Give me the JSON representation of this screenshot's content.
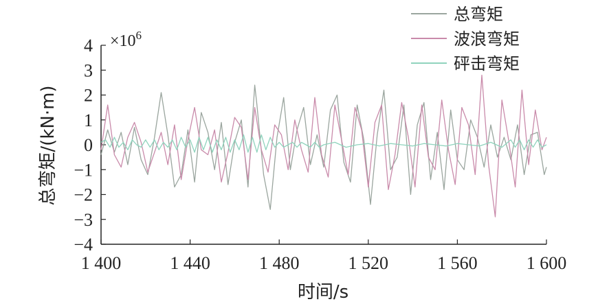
{
  "chart_data": {
    "type": "line",
    "xlabel": "时间/s",
    "ylabel": "总弯矩/(kN·m)",
    "y_multiplier": "×10",
    "y_multiplier_exp": "6",
    "xlim": [
      1400,
      1600
    ],
    "ylim": [
      -4,
      4
    ],
    "x_ticks": [
      1400,
      1440,
      1480,
      1520,
      1560,
      1600
    ],
    "x_tick_labels": [
      "1 400",
      "1 440",
      "1 480",
      "1 520",
      "1 560",
      "1 600"
    ],
    "y_ticks": [
      -4,
      -3,
      -2,
      -1,
      0,
      1,
      2,
      3,
      4
    ],
    "y_tick_labels": [
      "−4",
      "−3",
      "−2",
      "−1",
      "0",
      "1",
      "2",
      "3",
      "4"
    ],
    "legend_position": "top-right",
    "grid": false,
    "series": [
      {
        "name": "总弯矩",
        "color": "#9aa59e",
        "x": [
          1400,
          1403,
          1406,
          1409,
          1412,
          1415,
          1418,
          1421,
          1424,
          1427,
          1430,
          1433,
          1436,
          1439,
          1442,
          1445,
          1448,
          1451,
          1454,
          1457,
          1460,
          1463,
          1466,
          1469,
          1470,
          1473,
          1476,
          1479,
          1482,
          1485,
          1488,
          1491,
          1494,
          1497,
          1500,
          1503,
          1506,
          1509,
          1512,
          1515,
          1518,
          1521,
          1524,
          1527,
          1530,
          1533,
          1536,
          1539,
          1542,
          1545,
          1548,
          1551,
          1554,
          1557,
          1560,
          1563,
          1566,
          1569,
          1572,
          1575,
          1578,
          1581,
          1584,
          1587,
          1590,
          1593,
          1596,
          1599,
          1600
        ],
        "values": [
          -0.4,
          0.6,
          -0.3,
          0.5,
          -0.8,
          0.7,
          -0.6,
          -1.2,
          0.3,
          2.1,
          0.4,
          -1.7,
          -1.2,
          0.6,
          -1.5,
          1.3,
          0.5,
          -1.0,
          0.9,
          -1.6,
          0.1,
          1.0,
          -1.7,
          2.4,
          1.6,
          -1.2,
          -2.6,
          0.3,
          1.9,
          -1.0,
          0.6,
          1.5,
          -0.8,
          0.4,
          -0.9,
          1.4,
          2.0,
          -0.7,
          -1.5,
          1.6,
          0.2,
          -2.4,
          0.4,
          2.2,
          -1.0,
          -0.5,
          1.6,
          -2.0,
          0.8,
          1.7,
          -1.4,
          0.5,
          -1.8,
          1.4,
          -0.6,
          -1.0,
          1.0,
          0.3,
          -0.9,
          0.8,
          -0.5,
          0.3,
          -0.6,
          0.8,
          -1.2,
          0.4,
          0.5,
          -1.2,
          -0.9
        ]
      },
      {
        "name": "波浪弯矩",
        "color": "#c98aaa",
        "x": [
          1400,
          1403,
          1406,
          1409,
          1412,
          1415,
          1418,
          1421,
          1424,
          1427,
          1430,
          1433,
          1436,
          1439,
          1442,
          1445,
          1448,
          1451,
          1454,
          1457,
          1460,
          1463,
          1466,
          1469,
          1472,
          1475,
          1478,
          1481,
          1484,
          1487,
          1490,
          1493,
          1496,
          1499,
          1502,
          1505,
          1508,
          1511,
          1514,
          1517,
          1520,
          1523,
          1526,
          1529,
          1532,
          1535,
          1538,
          1541,
          1544,
          1547,
          1550,
          1553,
          1556,
          1559,
          1562,
          1565,
          1568,
          1571,
          1574,
          1577,
          1580,
          1583,
          1586,
          1589,
          1592,
          1595,
          1598,
          1600
        ],
        "values": [
          -0.2,
          1.6,
          -0.4,
          -0.9,
          0.3,
          0.9,
          0.1,
          -1.1,
          -0.3,
          0.5,
          -0.8,
          0.8,
          -1.4,
          0.2,
          1.5,
          -0.2,
          -0.4,
          0.6,
          -1.5,
          -0.3,
          1.1,
          0.7,
          -1.4,
          1.5,
          -0.2,
          -1.1,
          0.8,
          0.4,
          -1.0,
          1.0,
          -0.2,
          -1.1,
          1.9,
          -0.4,
          -1.3,
          1.6,
          0.2,
          -1.2,
          1.5,
          0.6,
          -1.7,
          0.9,
          1.6,
          -1.8,
          -0.4,
          1.7,
          0.3,
          -1.7,
          1.6,
          -0.5,
          -1.0,
          1.8,
          -0.2,
          -1.6,
          1.5,
          0.8,
          -1.2,
          2.8,
          -0.8,
          -2.9,
          1.8,
          0.2,
          -1.7,
          2.2,
          -0.8,
          1.4,
          -0.2,
          0.3
        ]
      },
      {
        "name": "砰击弯矩",
        "color": "#8fd3bd",
        "x": [
          1400,
          1402,
          1404,
          1406,
          1408,
          1410,
          1412,
          1414,
          1416,
          1418,
          1420,
          1422,
          1424,
          1426,
          1428,
          1430,
          1432,
          1434,
          1436,
          1438,
          1440,
          1442,
          1444,
          1446,
          1448,
          1450,
          1452,
          1454,
          1456,
          1458,
          1460,
          1462,
          1464,
          1466,
          1468,
          1470,
          1472,
          1474,
          1476,
          1478,
          1480,
          1482,
          1484,
          1486,
          1488,
          1490,
          1492,
          1494,
          1496,
          1498,
          1500,
          1505,
          1510,
          1515,
          1520,
          1525,
          1530,
          1535,
          1540,
          1545,
          1550,
          1555,
          1560,
          1565,
          1570,
          1575,
          1580,
          1584,
          1586,
          1588,
          1590,
          1592,
          1594,
          1596,
          1598,
          1600
        ],
        "values": [
          0.1,
          0.2,
          -0.1,
          0.3,
          -0.1,
          0.1,
          -0.2,
          0.2,
          0.0,
          -0.1,
          0.2,
          -0.1,
          0.2,
          -0.2,
          0.1,
          -0.1,
          0.2,
          -0.2,
          0.3,
          -0.1,
          0.2,
          -0.3,
          0.3,
          -0.2,
          0.3,
          -0.3,
          0.2,
          -0.2,
          0.3,
          -0.3,
          0.2,
          -0.2,
          0.4,
          -0.3,
          0.3,
          -0.3,
          0.4,
          -0.2,
          0.3,
          -0.1,
          0.1,
          -0.1,
          0.0,
          0.1,
          -0.1,
          0.1,
          0.0,
          -0.1,
          0.1,
          -0.1,
          0.0,
          0.1,
          -0.1,
          0.0,
          0.05,
          -0.05,
          0.05,
          0.0,
          -0.05,
          0.05,
          0.0,
          -0.05,
          0.05,
          0.0,
          -0.05,
          0.1,
          -0.1,
          0.2,
          -0.1,
          0.2,
          -0.2,
          0.2,
          -0.1,
          0.2,
          -0.1,
          0.0
        ]
      }
    ]
  }
}
